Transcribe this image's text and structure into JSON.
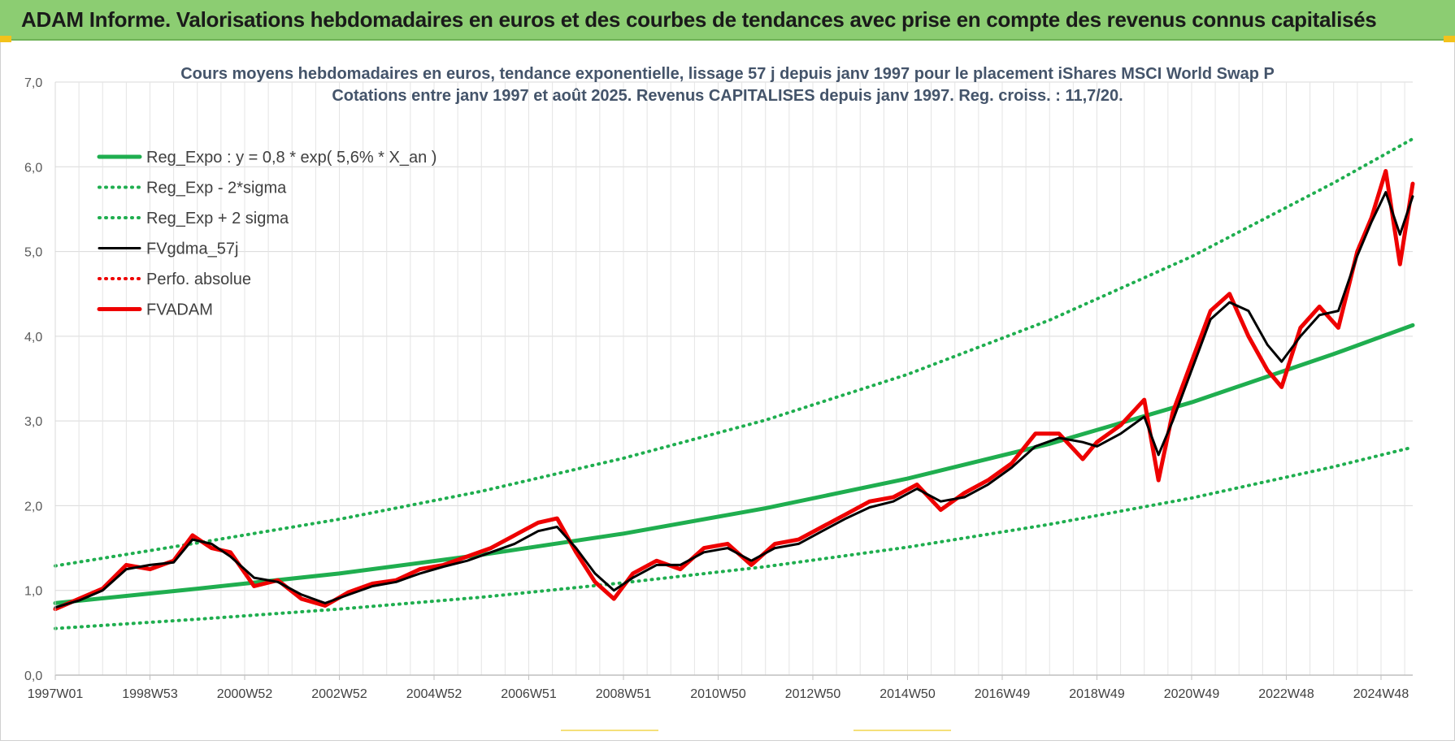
{
  "banner": {
    "title": "ADAM Informe. Valorisations hebdomadaires en euros et des courbes de tendances avec prise en compte des revenus connus capitalisés"
  },
  "colors": {
    "banner_bg": "#8ccd72",
    "reg_green": "#1fae4f",
    "fv_black": "#000000",
    "fvadam_red": "#ee0000",
    "grid": "#d9d9d9",
    "accent_yellow": "#f3c21b"
  },
  "chart_data": {
    "type": "line",
    "title": "Cours moyens hebdomadaires en euros, tendance exponentielle, lissage 57 j depuis janv 1997 pour le placement iShares MSCI World Swap P",
    "subtitle": "Cotations entre janv 1997 et août 2025.  Revenus CAPITALISES depuis janv 1997. Reg. croiss. : 11,7/20.",
    "xlabel": "",
    "ylabel": "",
    "ylim": [
      0,
      7
    ],
    "xlim": [
      1997.0,
      2025.67
    ],
    "grid": true,
    "legend_position": "top-left",
    "y_ticks": [
      "0,0",
      "1,0",
      "2,0",
      "3,0",
      "4,0",
      "5,0",
      "6,0",
      "7,0"
    ],
    "x_ticks": [
      {
        "label": "1997W01",
        "x": 1997.0
      },
      {
        "label": "1998W53",
        "x": 1999.0
      },
      {
        "label": "2000W52",
        "x": 2001.0
      },
      {
        "label": "2002W52",
        "x": 2003.0
      },
      {
        "label": "2004W52",
        "x": 2005.0
      },
      {
        "label": "2006W51",
        "x": 2007.0
      },
      {
        "label": "2008W51",
        "x": 2009.0
      },
      {
        "label": "2010W50",
        "x": 2011.0
      },
      {
        "label": "2012W50",
        "x": 2013.0
      },
      {
        "label": "2014W50",
        "x": 2015.0
      },
      {
        "label": "2016W49",
        "x": 2017.0
      },
      {
        "label": "2018W49",
        "x": 2019.0
      },
      {
        "label": "2020W49",
        "x": 2021.0
      },
      {
        "label": "2022W48",
        "x": 2023.0
      },
      {
        "label": "2024W48",
        "x": 2025.0
      }
    ],
    "series": [
      {
        "name": "Reg_Expo : y = 0,8 * exp( 5,6% *  X_an )",
        "style": "solid-thick",
        "color": "#1fae4f",
        "x": [
          1997.0,
          2000,
          2003,
          2006,
          2009,
          2012,
          2015,
          2018,
          2021,
          2024,
          2025.67
        ],
        "y": [
          0.85,
          1.02,
          1.2,
          1.42,
          1.67,
          1.97,
          2.32,
          2.73,
          3.22,
          3.79,
          4.13
        ]
      },
      {
        "name": "Reg_Exp - 2*sigma",
        "style": "dotted",
        "color": "#1fae4f",
        "x": [
          1997.0,
          2000,
          2003,
          2006,
          2009,
          2012,
          2015,
          2018,
          2021,
          2024,
          2025.67
        ],
        "y": [
          0.55,
          0.66,
          0.78,
          0.92,
          1.09,
          1.28,
          1.51,
          1.78,
          2.09,
          2.46,
          2.69
        ]
      },
      {
        "name": "Reg_Exp + 2 sigma",
        "style": "dotted",
        "color": "#1fae4f",
        "x": [
          1997.0,
          2000,
          2003,
          2006,
          2009,
          2012,
          2015,
          2018,
          2021,
          2024,
          2025.67
        ],
        "y": [
          1.29,
          1.56,
          1.84,
          2.17,
          2.56,
          3.01,
          3.55,
          4.19,
          4.94,
          5.81,
          6.33
        ]
      },
      {
        "name": "FVgdma_57j",
        "style": "solid",
        "color": "#000000",
        "x": [
          1997.0,
          1997.5,
          1998.0,
          1998.5,
          1999.0,
          1999.5,
          1999.9,
          2000.3,
          2000.7,
          2001.2,
          2001.7,
          2002.2,
          2002.7,
          2003.2,
          2003.7,
          2004.2,
          2004.7,
          2005.2,
          2005.7,
          2006.2,
          2006.7,
          2007.2,
          2007.6,
          2008.0,
          2008.4,
          2008.8,
          2009.2,
          2009.7,
          2010.2,
          2010.7,
          2011.2,
          2011.7,
          2012.2,
          2012.7,
          2013.2,
          2013.7,
          2014.2,
          2014.7,
          2015.2,
          2015.7,
          2016.2,
          2016.7,
          2017.2,
          2017.7,
          2018.2,
          2018.7,
          2019.0,
          2019.5,
          2020.0,
          2020.3,
          2020.6,
          2021.0,
          2021.4,
          2021.8,
          2022.2,
          2022.6,
          2022.9,
          2023.3,
          2023.7,
          2024.1,
          2024.5,
          2024.8,
          2025.1,
          2025.4,
          2025.67
        ],
        "y": [
          0.8,
          0.88,
          1.0,
          1.25,
          1.3,
          1.33,
          1.6,
          1.55,
          1.4,
          1.15,
          1.1,
          0.95,
          0.85,
          0.95,
          1.05,
          1.1,
          1.2,
          1.28,
          1.35,
          1.45,
          1.55,
          1.7,
          1.75,
          1.5,
          1.2,
          1.0,
          1.15,
          1.3,
          1.3,
          1.45,
          1.5,
          1.35,
          1.5,
          1.55,
          1.7,
          1.85,
          1.98,
          2.05,
          2.2,
          2.05,
          2.1,
          2.25,
          2.45,
          2.7,
          2.8,
          2.75,
          2.7,
          2.85,
          3.05,
          2.6,
          3.0,
          3.6,
          4.2,
          4.4,
          4.3,
          3.9,
          3.7,
          4.0,
          4.25,
          4.3,
          4.95,
          5.35,
          5.7,
          5.2,
          5.65
        ]
      },
      {
        "name": "Perfo. absolue",
        "style": "dotted",
        "color": "#ee0000",
        "x": [],
        "y": []
      },
      {
        "name": "FVADAM",
        "style": "solid-thick",
        "color": "#ee0000",
        "x": [
          1997.0,
          1997.5,
          1998.0,
          1998.5,
          1999.0,
          1999.5,
          1999.9,
          2000.3,
          2000.7,
          2001.2,
          2001.7,
          2002.2,
          2002.7,
          2003.2,
          2003.7,
          2004.2,
          2004.7,
          2005.2,
          2005.7,
          2006.2,
          2006.7,
          2007.2,
          2007.6,
          2008.0,
          2008.4,
          2008.8,
          2009.2,
          2009.7,
          2010.2,
          2010.7,
          2011.2,
          2011.7,
          2012.2,
          2012.7,
          2013.2,
          2013.7,
          2014.2,
          2014.7,
          2015.2,
          2015.7,
          2016.2,
          2016.7,
          2017.2,
          2017.7,
          2018.2,
          2018.7,
          2019.0,
          2019.5,
          2020.0,
          2020.3,
          2020.6,
          2021.0,
          2021.4,
          2021.8,
          2022.2,
          2022.6,
          2022.9,
          2023.3,
          2023.7,
          2024.1,
          2024.5,
          2024.8,
          2025.1,
          2025.4,
          2025.67
        ],
        "y": [
          0.78,
          0.9,
          1.02,
          1.3,
          1.25,
          1.35,
          1.65,
          1.5,
          1.45,
          1.05,
          1.12,
          0.9,
          0.82,
          0.98,
          1.08,
          1.12,
          1.25,
          1.3,
          1.4,
          1.5,
          1.65,
          1.8,
          1.85,
          1.45,
          1.1,
          0.9,
          1.2,
          1.35,
          1.25,
          1.5,
          1.55,
          1.3,
          1.55,
          1.6,
          1.75,
          1.9,
          2.05,
          2.1,
          2.25,
          1.95,
          2.15,
          2.3,
          2.5,
          2.85,
          2.85,
          2.55,
          2.75,
          2.95,
          3.25,
          2.3,
          3.1,
          3.7,
          4.3,
          4.5,
          4.0,
          3.6,
          3.4,
          4.1,
          4.35,
          4.1,
          5.0,
          5.4,
          5.95,
          4.85,
          5.8
        ]
      }
    ]
  }
}
